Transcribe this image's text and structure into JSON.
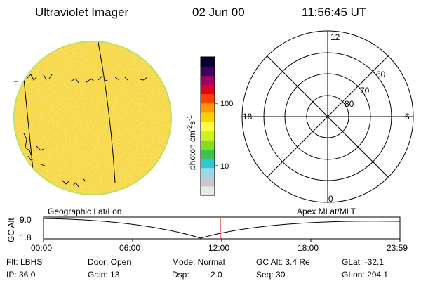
{
  "header": {
    "instrument": "Ultraviolet Imager",
    "date": "02 Jun 00",
    "time": "11:56:45 UT"
  },
  "colorbar": {
    "unit_label": "photon cm-2s-1",
    "tick_labels": [
      "100",
      "10"
    ],
    "colors": [
      "#e8e8e8",
      "#c8c8c8",
      "#9ad8e8",
      "#30c8d0",
      "#40c050",
      "#80e020",
      "#d0f020",
      "#ffff40",
      "#ffd000",
      "#ff9800",
      "#ff4000",
      "#e00020",
      "#a00060",
      "#400060",
      "#000030"
    ]
  },
  "disk": {
    "fill_color": "#f8d848",
    "edge_color": "#b8e060"
  },
  "polar_plot": {
    "mlt_labels": {
      "top": "12",
      "left": "18",
      "right": "6",
      "bottom": "0"
    },
    "lat_labels": [
      "60",
      "70",
      "80"
    ]
  },
  "track": {
    "left_label": "Geographic Lat/Lon",
    "right_label": "Apex MLat/MLT",
    "y_axis_label": "GC Alt",
    "y_ticks": [
      "9.0",
      "1.8"
    ],
    "x_ticks": [
      "00:00",
      "06:00",
      "12:00",
      "18:00",
      "23:59"
    ],
    "marker_color": "#e00000"
  },
  "info": {
    "flt": "Flt: LBHS",
    "ip": "IP: 36.0",
    "door": "Door: Open",
    "gain": "Gain: 13",
    "mode": "Mode: Normal",
    "dsp_label": "Dsp:",
    "dsp_value": "2.0",
    "gc_alt": "GC Alt: 3.4 Re",
    "seq": "Seq: 30",
    "glat": "GLat: -32.1",
    "glon": "GLon: 294.1"
  }
}
